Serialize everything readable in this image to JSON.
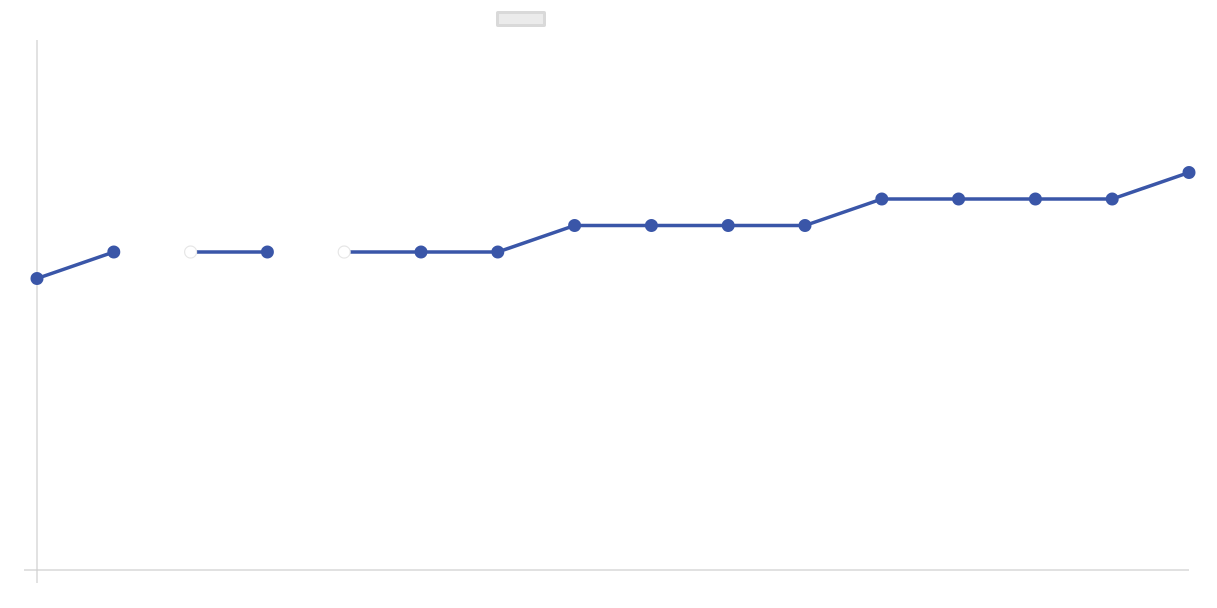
{
  "chart_data": {
    "type": "line",
    "title": "",
    "xlabel": "",
    "ylabel": "",
    "ylim": [
      0,
      10
    ],
    "grid": false,
    "legend": {
      "placement": "top-center",
      "label": ""
    },
    "x": [
      0,
      1,
      2,
      3,
      4,
      5,
      6,
      7,
      8,
      9,
      10,
      11,
      12,
      13,
      14,
      15
    ],
    "series": [
      {
        "color": "#3a56a8",
        "values": [
          5.5,
          6.0,
          6.0,
          6.0,
          6.0,
          6.0,
          6.0,
          6.5,
          6.5,
          6.5,
          6.5,
          7.0,
          7.0,
          7.0,
          7.0,
          7.5
        ],
        "hidden_points": [
          2,
          4
        ],
        "line_breaks_after": [
          1,
          3
        ]
      }
    ]
  }
}
